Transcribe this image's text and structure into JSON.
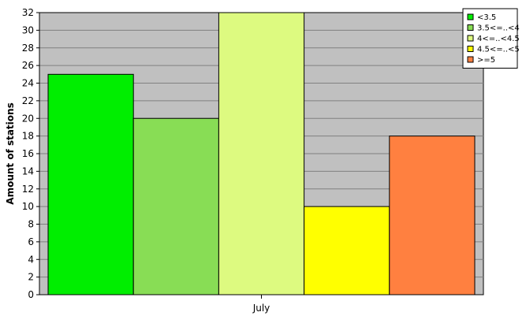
{
  "chart_data": {
    "type": "bar",
    "categories": [
      "July"
    ],
    "series": [
      {
        "name": "<3.5",
        "values": [
          25
        ],
        "color": "#00ee00"
      },
      {
        "name": "3.5<=..<4",
        "values": [
          20
        ],
        "color": "#88dd55"
      },
      {
        "name": "4<=..<4.5",
        "values": [
          32
        ],
        "color": "#ddfa80"
      },
      {
        "name": "4.5<=..<5",
        "values": [
          10
        ],
        "color": "#ffff00"
      },
      {
        "name": ">=5",
        "values": [
          18
        ],
        "color": "#ff8040"
      }
    ],
    "title": "",
    "xlabel": "",
    "ylabel": "Amount of stations",
    "ylim": [
      0,
      32
    ],
    "ytick_step": 2,
    "grid": true,
    "legend_position": "top-right",
    "plot_background": "#c0c0c0"
  }
}
